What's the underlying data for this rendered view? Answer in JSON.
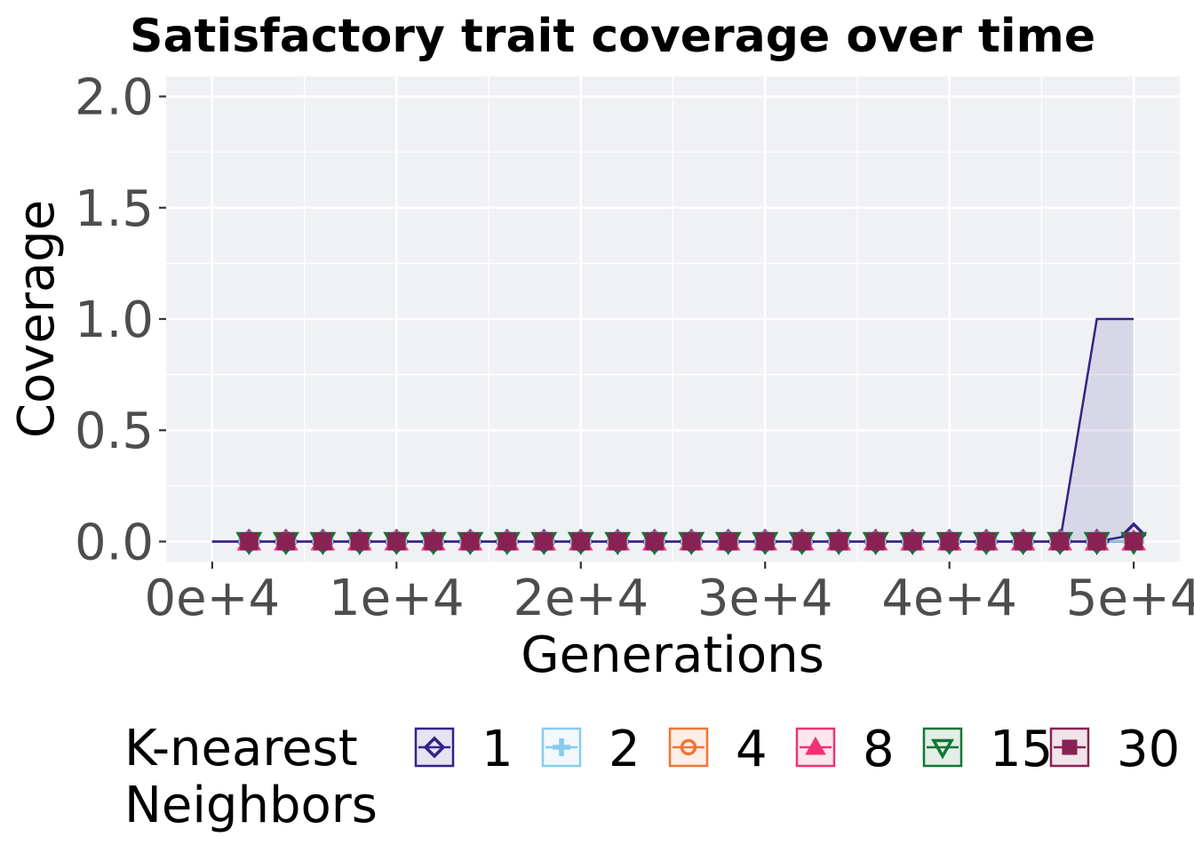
{
  "chart_data": {
    "type": "line",
    "title": "Satisfactory trait coverage over time",
    "xlabel": "Generations",
    "ylabel": "Coverage",
    "xlim": [
      -2500,
      52500
    ],
    "ylim": [
      -0.09,
      2.09
    ],
    "xticks": [
      0,
      10000,
      20000,
      30000,
      40000,
      50000
    ],
    "xtick_labels": [
      "0e+4",
      "1e+4",
      "2e+4",
      "3e+4",
      "4e+4",
      "5e+4"
    ],
    "yticks": [
      0,
      0.5,
      1.0,
      1.5,
      2.0
    ],
    "ytick_labels": [
      "0.0",
      "0.5",
      "1.0",
      "1.5",
      "2.0"
    ],
    "grid": true,
    "legend": {
      "title": "K-nearest Neighbors",
      "placement": "bottom",
      "entries": [
        "1",
        "2",
        "4",
        "8",
        "15",
        "30"
      ]
    },
    "x": [
      0,
      2000,
      4000,
      6000,
      8000,
      10000,
      12000,
      14000,
      16000,
      18000,
      20000,
      22000,
      24000,
      26000,
      28000,
      30000,
      32000,
      34000,
      36000,
      38000,
      40000,
      42000,
      44000,
      46000,
      48000,
      50000
    ],
    "series": [
      {
        "name": "1",
        "color": "#332288",
        "marker": "diamond",
        "values": [
          0,
          0,
          0,
          0,
          0,
          0,
          0,
          0,
          0,
          0,
          0,
          0,
          0,
          0,
          0,
          0,
          0,
          0,
          0,
          0,
          0,
          0,
          0,
          0,
          0,
          0.03
        ],
        "band_upper": [
          0,
          0,
          0,
          0,
          0,
          0,
          0,
          0,
          0,
          0,
          0,
          0,
          0,
          0,
          0,
          0,
          0,
          0,
          0,
          0,
          0,
          0,
          0,
          0,
          1.0,
          1.0
        ],
        "band_lower": [
          0,
          0,
          0,
          0,
          0,
          0,
          0,
          0,
          0,
          0,
          0,
          0,
          0,
          0,
          0,
          0,
          0,
          0,
          0,
          0,
          0,
          0,
          0,
          0,
          0,
          0
        ]
      },
      {
        "name": "2",
        "color": "#88CCEE",
        "marker": "plus",
        "values": [
          0,
          0,
          0,
          0,
          0,
          0,
          0,
          0,
          0,
          0,
          0,
          0,
          0,
          0,
          0,
          0,
          0,
          0,
          0,
          0,
          0,
          0,
          0,
          0,
          0,
          0
        ]
      },
      {
        "name": "4",
        "color": "#EE7733",
        "marker": "circle",
        "values": [
          0,
          0,
          0,
          0,
          0,
          0,
          0,
          0,
          0,
          0,
          0,
          0,
          0,
          0,
          0,
          0,
          0,
          0,
          0,
          0,
          0,
          0,
          0,
          0,
          0,
          0
        ]
      },
      {
        "name": "8",
        "color": "#EE3377",
        "marker": "triangle-up",
        "values": [
          0,
          0,
          0,
          0,
          0,
          0,
          0,
          0,
          0,
          0,
          0,
          0,
          0,
          0,
          0,
          0,
          0,
          0,
          0,
          0,
          0,
          0,
          0,
          0,
          0,
          0
        ]
      },
      {
        "name": "15",
        "color": "#117733",
        "marker": "triangle-down",
        "values": [
          0,
          0,
          0,
          0,
          0,
          0,
          0,
          0,
          0,
          0,
          0,
          0,
          0,
          0,
          0,
          0,
          0,
          0,
          0,
          0,
          0,
          0,
          0,
          0,
          0,
          0
        ]
      },
      {
        "name": "30",
        "color": "#882255",
        "marker": "square",
        "values": [
          0,
          0,
          0,
          0,
          0,
          0,
          0,
          0,
          0,
          0,
          0,
          0,
          0,
          0,
          0,
          0,
          0,
          0,
          0,
          0,
          0,
          0,
          0,
          0,
          0,
          0
        ]
      }
    ]
  }
}
